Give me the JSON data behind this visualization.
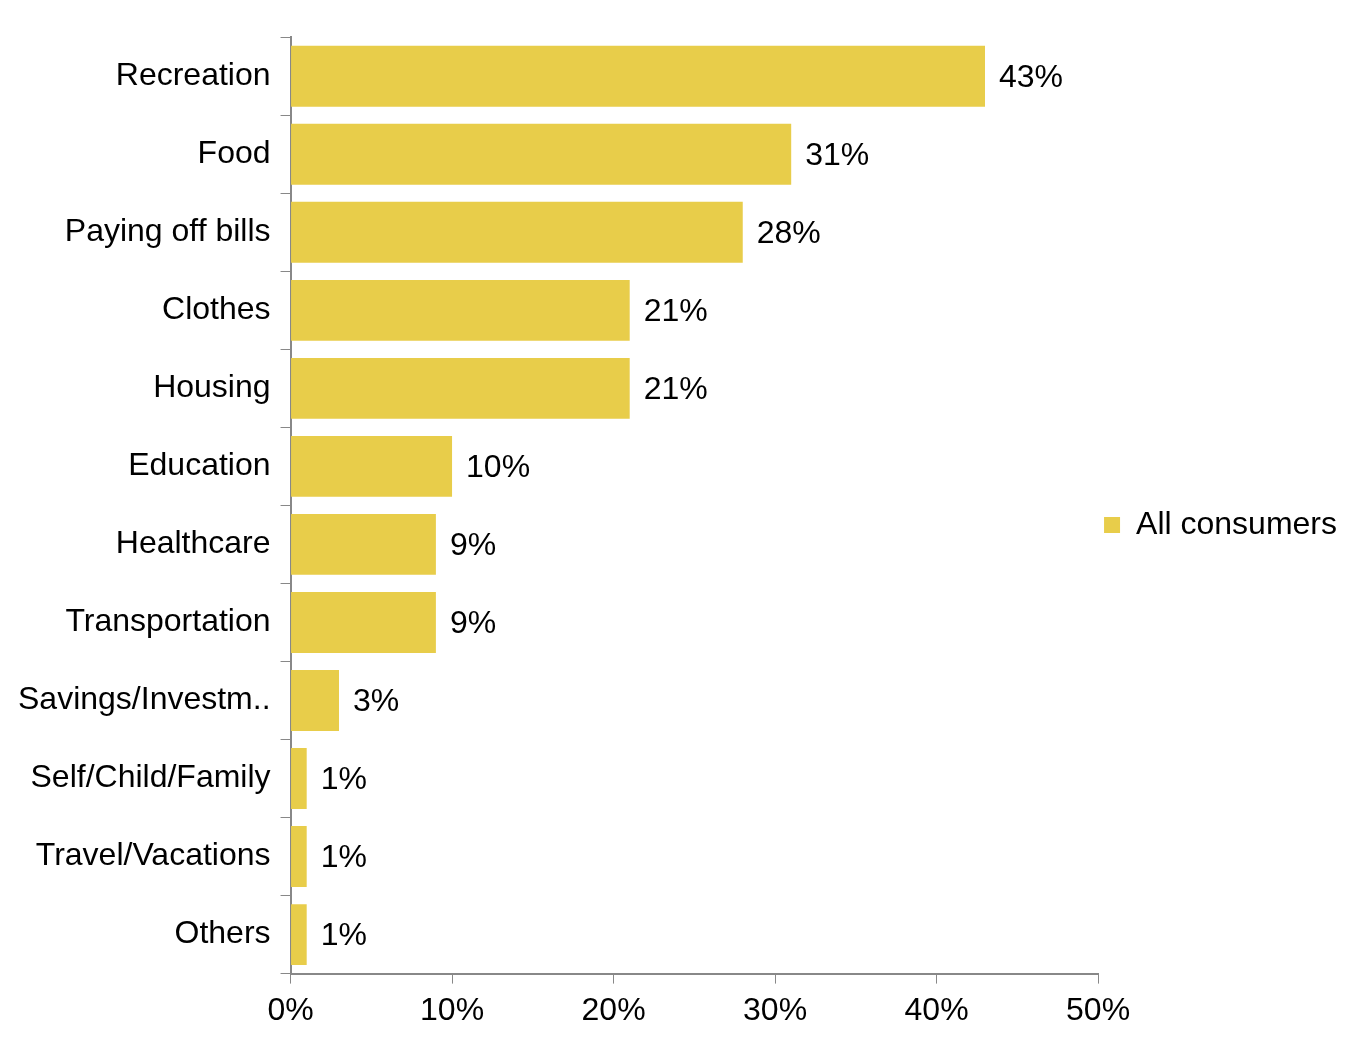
{
  "chart_data": {
    "type": "bar",
    "orientation": "horizontal",
    "categories": [
      "Recreation",
      "Food",
      "Paying off bills",
      "Clothes",
      "Housing",
      "Education",
      "Healthcare",
      "Transportation",
      "Savings/Investm..",
      "Self/Child/Family",
      "Travel/Vacations",
      "Others"
    ],
    "series": [
      {
        "name": "All consumers",
        "color": "#e8cd4a",
        "values": [
          43,
          31,
          28,
          21,
          21,
          10,
          9,
          9,
          3,
          1,
          1,
          1
        ],
        "value_labels": [
          "43%",
          "31%",
          "28%",
          "21%",
          "21%",
          "10%",
          "9%",
          "9%",
          "3%",
          "1%",
          "1%",
          "1%"
        ]
      }
    ],
    "xlim": [
      0,
      50
    ],
    "xticks": [
      {
        "value": 0,
        "label": "0%"
      },
      {
        "value": 10,
        "label": "10%"
      },
      {
        "value": 20,
        "label": "20%"
      },
      {
        "value": 30,
        "label": "30%"
      },
      {
        "value": 40,
        "label": "40%"
      },
      {
        "value": 50,
        "label": "50%"
      }
    ],
    "grid": false,
    "legend": "right"
  }
}
